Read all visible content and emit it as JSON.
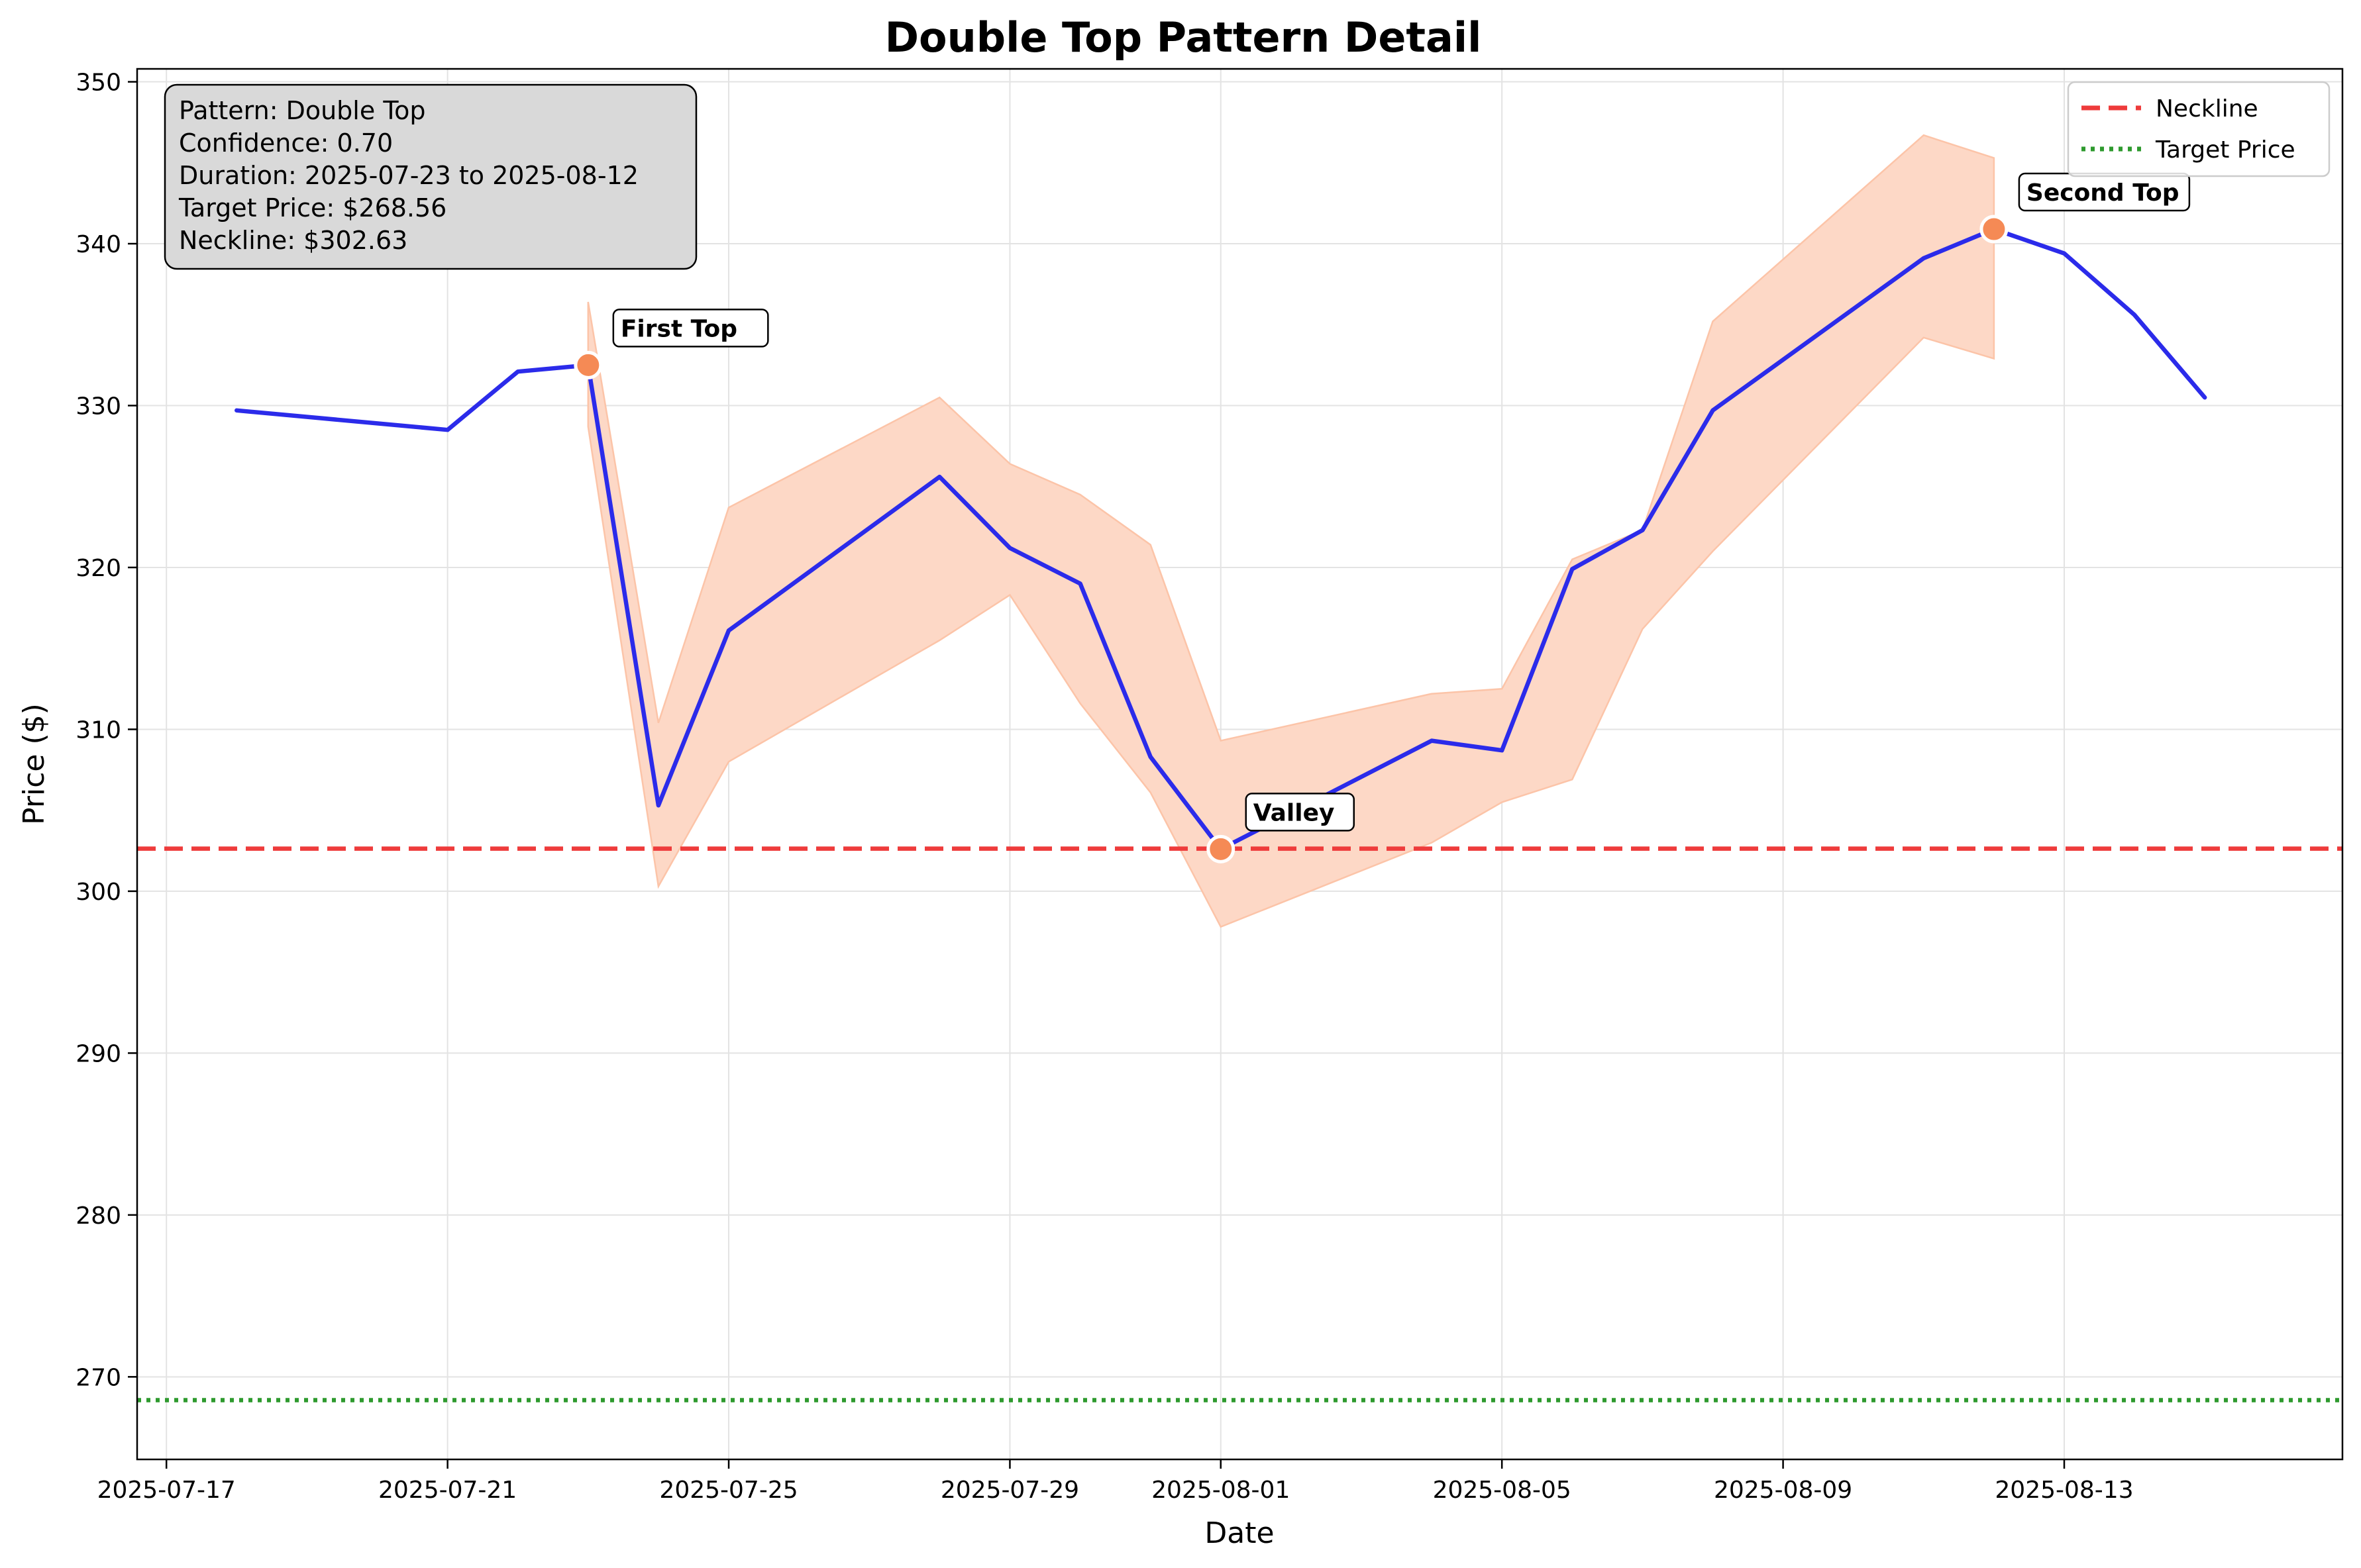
{
  "chart_data": {
    "type": "line",
    "title": "Double Top Pattern Detail",
    "xlabel": "Date",
    "ylabel": "Price ($)",
    "xlim": [
      "2025-07-16T14:00",
      "2025-08-16T23:00"
    ],
    "ylim": [
      264.9,
      350.8
    ],
    "x_ticks": [
      "2025-07-17",
      "2025-07-21",
      "2025-07-25",
      "2025-07-29",
      "2025-08-01",
      "2025-08-05",
      "2025-08-09",
      "2025-08-13"
    ],
    "y_ticks": [
      270,
      280,
      290,
      300,
      310,
      320,
      330,
      340,
      350
    ],
    "grid": true,
    "legend_position": "top-right",
    "colors": {
      "price": "#2b2bea",
      "band": "#fdd8c6",
      "band_edge": "#fcc4a8",
      "neckline": "#ee3b3b",
      "target": "#2e9a2e",
      "marker": "#f58a55",
      "info_box": "#d9d9d9"
    },
    "series": [
      {
        "name": "",
        "x": [
          "2025-07-18",
          "2025-07-21",
          "2025-07-22",
          "2025-07-23",
          "2025-07-24",
          "2025-07-25",
          "2025-07-28",
          "2025-07-29",
          "2025-07-30",
          "2025-07-31",
          "2025-08-01",
          "2025-08-04",
          "2025-08-05",
          "2025-08-06",
          "2025-08-07",
          "2025-08-08",
          "2025-08-11",
          "2025-08-12",
          "2025-08-13",
          "2025-08-14",
          "2025-08-15"
        ],
        "values": [
          329.7,
          328.5,
          332.1,
          332.5,
          305.3,
          316.1,
          325.6,
          321.2,
          319.0,
          308.3,
          302.6,
          309.3,
          308.7,
          319.9,
          322.3,
          329.7,
          339.1,
          340.9,
          339.4,
          335.6,
          330.5
        ]
      }
    ],
    "band": {
      "x": [
        "2025-07-23",
        "2025-07-24",
        "2025-07-25",
        "2025-07-28",
        "2025-07-29",
        "2025-07-30",
        "2025-07-31",
        "2025-08-01",
        "2025-08-04",
        "2025-08-05",
        "2025-08-06",
        "2025-08-07",
        "2025-08-08",
        "2025-08-11",
        "2025-08-12"
      ],
      "upper": [
        336.4,
        310.4,
        323.7,
        330.5,
        326.4,
        324.5,
        321.4,
        309.3,
        312.2,
        312.5,
        320.5,
        322.3,
        335.2,
        346.7,
        345.3
      ],
      "lower": [
        328.7,
        300.3,
        308.0,
        315.5,
        318.3,
        311.6,
        306.1,
        297.8,
        303.0,
        305.5,
        306.9,
        316.2,
        321.0,
        334.2,
        332.9
      ]
    },
    "lines": [
      {
        "name": "Neckline",
        "value": 302.63,
        "style": "dashed"
      },
      {
        "name": "Target Price",
        "value": 268.56,
        "style": "dotted"
      }
    ],
    "points": [
      {
        "label": "First Top",
        "x": "2025-07-23",
        "y": 332.5
      },
      {
        "label": "Valley",
        "x": "2025-08-01",
        "y": 302.6
      },
      {
        "label": "Second Top",
        "x": "2025-08-12",
        "y": 340.9
      }
    ],
    "info_box": [
      "Pattern: Double Top",
      "Confidence: 0.70",
      "Duration: 2025-07-23 to 2025-08-12",
      "Target Price: $268.56",
      "Neckline: $302.63"
    ]
  }
}
